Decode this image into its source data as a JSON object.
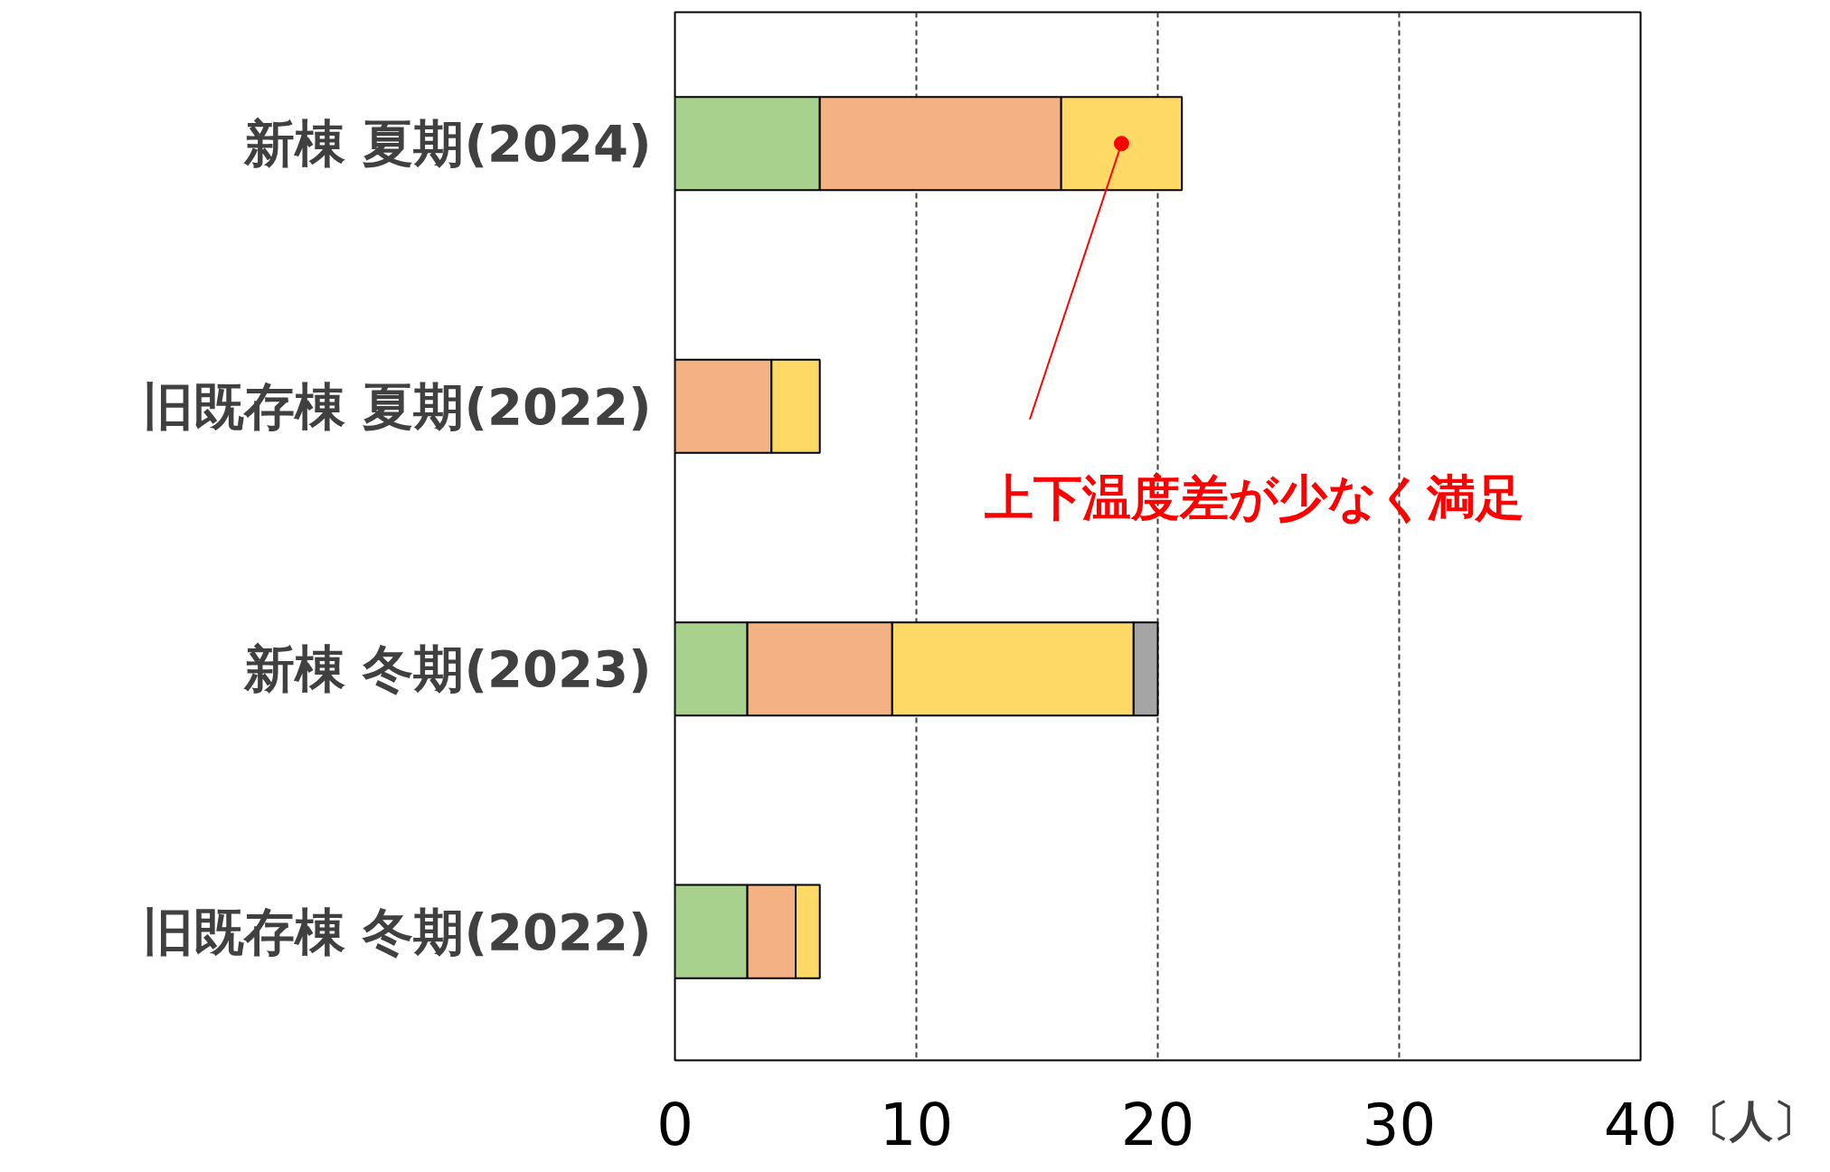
{
  "chart_data": {
    "type": "bar",
    "orientation": "horizontal",
    "stacked": true,
    "categories": [
      "新棟 夏期(2024)",
      "旧既存棟 夏期(2022)",
      "新棟 冬期(2023)",
      "旧既存棟 冬期(2022)"
    ],
    "series": [
      {
        "color": "#a9d18e",
        "values": [
          6,
          0,
          3,
          3
        ]
      },
      {
        "color": "#f4b183",
        "values": [
          10,
          4,
          6,
          2
        ]
      },
      {
        "color": "#ffd966",
        "values": [
          5,
          2,
          10,
          1
        ]
      },
      {
        "color": "#a5a5a5",
        "values": [
          0,
          0,
          1,
          0
        ]
      }
    ],
    "xlim": [
      0,
      40
    ],
    "xticks": [
      0,
      10,
      20,
      30,
      40
    ],
    "xlabel": "〔人〕",
    "grid": "x",
    "annotations": [
      {
        "text": "上下温度差が少なく満足",
        "x": 18.5,
        "y": "新棟 夏期(2024)"
      }
    ]
  }
}
